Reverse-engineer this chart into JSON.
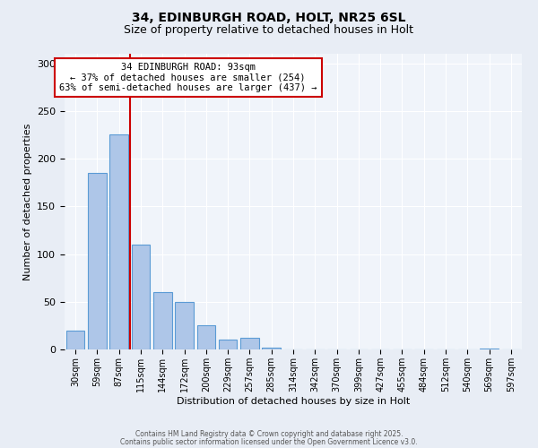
{
  "title1": "34, EDINBURGH ROAD, HOLT, NR25 6SL",
  "title2": "Size of property relative to detached houses in Holt",
  "xlabel": "Distribution of detached houses by size in Holt",
  "ylabel": "Number of detached properties",
  "bar_values": [
    20,
    185,
    225,
    110,
    60,
    50,
    25,
    10,
    12,
    2,
    0,
    0,
    0,
    0,
    0,
    0,
    0,
    0,
    0,
    1,
    0
  ],
  "bin_labels": [
    "30sqm",
    "59sqm",
    "87sqm",
    "115sqm",
    "144sqm",
    "172sqm",
    "200sqm",
    "229sqm",
    "257sqm",
    "285sqm",
    "314sqm",
    "342sqm",
    "370sqm",
    "399sqm",
    "427sqm",
    "455sqm",
    "484sqm",
    "512sqm",
    "540sqm",
    "569sqm",
    "597sqm"
  ],
  "bar_color": "#aec6e8",
  "bar_edge_color": "#5b9bd5",
  "vline_color": "#cc0000",
  "annotation_title": "34 EDINBURGH ROAD: 93sqm",
  "annotation_line2": "← 37% of detached houses are smaller (254)",
  "annotation_line3": "63% of semi-detached houses are larger (437) →",
  "annotation_box_color": "#ffffff",
  "annotation_border_color": "#cc0000",
  "ylim": [
    0,
    310
  ],
  "yticks": [
    0,
    50,
    100,
    150,
    200,
    250,
    300
  ],
  "footer1": "Contains HM Land Registry data © Crown copyright and database right 2025.",
  "footer2": "Contains public sector information licensed under the Open Government Licence v3.0.",
  "bg_color": "#e8edf5",
  "plot_bg_color": "#f0f4fa"
}
